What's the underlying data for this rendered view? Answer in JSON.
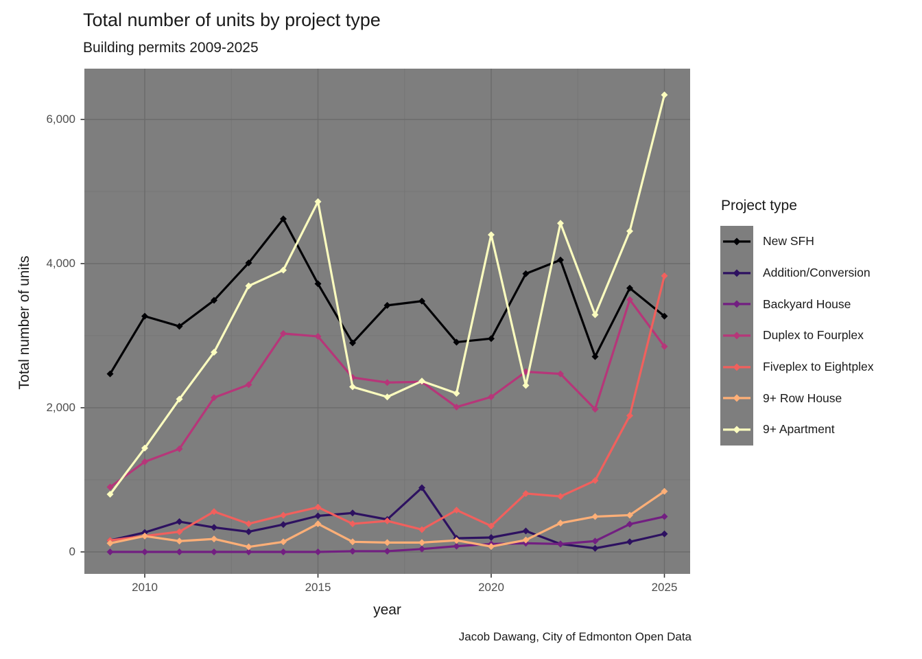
{
  "title": "Total number of units by project type",
  "subtitle": "Building permits 2009-2025",
  "caption": "Jacob Dawang, City of Edmonton Open Data",
  "legend": {
    "title": "Project type"
  },
  "x_axis": {
    "label": "year",
    "tick_labels": [
      "2010",
      "2015",
      "2020",
      "2025"
    ]
  },
  "y_axis": {
    "label": "Total number of units",
    "tick_labels": [
      "0",
      "2,000",
      "4,000",
      "6,000"
    ]
  },
  "colors": {
    "panel_background": "#7E7E7E",
    "grid_major": "#6B6B6B",
    "grid_minor": "#757575",
    "tick_mark": "#333333",
    "tick_label": "#4D4D4D",
    "text": "#1a1a1a",
    "page_background": "#FFFFFF"
  },
  "chart_data": {
    "type": "line",
    "title": "Total number of units by project type",
    "subtitle": "Building permits 2009-2025",
    "caption": "Jacob Dawang, City of Edmonton Open Data",
    "xlabel": "year",
    "ylabel": "Total number of units",
    "legend_title": "Project type",
    "legend_position": "right",
    "grid": true,
    "marker": "diamond",
    "x": [
      2009,
      2010,
      2011,
      2012,
      2013,
      2014,
      2015,
      2016,
      2017,
      2018,
      2019,
      2020,
      2021,
      2022,
      2023,
      2024,
      2025
    ],
    "xticks": [
      2010,
      2015,
      2020,
      2025
    ],
    "yticks": [
      0,
      2000,
      4000,
      6000
    ],
    "yticks_minor": [
      1000,
      3000,
      5000
    ],
    "xticks_minor": [
      2012.5,
      2017.5,
      2022.5
    ],
    "ylim": [
      -330,
      6710
    ],
    "xlim": [
      2008.26,
      2025.74
    ],
    "series": [
      {
        "name": "New SFH",
        "color": "#000004",
        "values": [
          2470,
          3270,
          3130,
          3490,
          4010,
          4620,
          3720,
          2900,
          3420,
          3480,
          2910,
          2960,
          3860,
          4050,
          2710,
          3660,
          3270
        ]
      },
      {
        "name": "Addition/Conversion",
        "color": "#2D1160",
        "values": [
          160,
          270,
          420,
          340,
          280,
          380,
          500,
          540,
          450,
          890,
          190,
          200,
          290,
          110,
          50,
          140,
          250
        ]
      },
      {
        "name": "Backyard House",
        "color": "#721F81",
        "values": [
          0,
          0,
          0,
          0,
          0,
          0,
          0,
          10,
          10,
          40,
          80,
          110,
          120,
          110,
          150,
          385,
          490
        ]
      },
      {
        "name": "Duplex to Fourplex",
        "color": "#B63679",
        "values": [
          900,
          1250,
          1430,
          2140,
          2320,
          3030,
          2990,
          2420,
          2350,
          2360,
          2010,
          2150,
          2500,
          2470,
          1980,
          3500,
          2850
        ]
      },
      {
        "name": "Fiveplex to Eightplex",
        "color": "#F1605D",
        "values": [
          160,
          220,
          280,
          560,
          390,
          510,
          620,
          390,
          430,
          310,
          580,
          360,
          810,
          770,
          990,
          1890,
          3830
        ]
      },
      {
        "name": "9+ Row House",
        "color": "#FEAF77",
        "values": [
          120,
          220,
          150,
          180,
          70,
          140,
          390,
          140,
          130,
          130,
          160,
          75,
          165,
          400,
          490,
          510,
          840
        ]
      },
      {
        "name": "9+ Apartment",
        "color": "#FCFDBF",
        "values": [
          800,
          1440,
          2120,
          2770,
          3690,
          3910,
          4860,
          2290,
          2150,
          2370,
          2200,
          4400,
          2310,
          4560,
          3290,
          4450,
          6340
        ]
      }
    ]
  }
}
